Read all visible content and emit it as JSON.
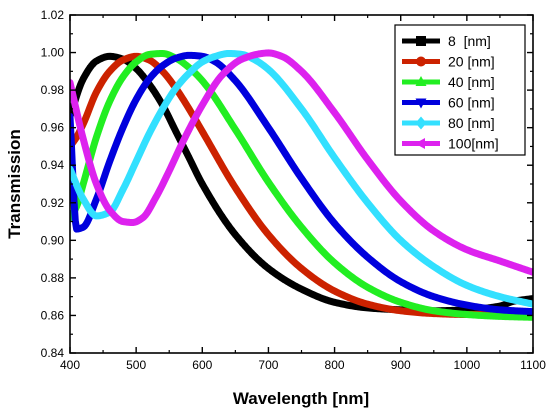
{
  "chart_data": {
    "type": "line",
    "title": "",
    "xlabel": "Wavelength [nm]",
    "ylabel": "Transmission",
    "xlim": [
      400,
      1100
    ],
    "ylim": [
      0.84,
      1.02
    ],
    "x_ticks": [
      400,
      500,
      600,
      700,
      800,
      900,
      1000,
      1100
    ],
    "x_tick_labels": [
      "400",
      "500",
      "600",
      "700",
      "800",
      "900",
      "1000",
      "1100"
    ],
    "y_ticks": [
      0.84,
      0.86,
      0.88,
      0.9,
      0.92,
      0.94,
      0.96,
      0.98,
      1.0,
      1.02
    ],
    "y_tick_labels": [
      "0.84",
      "0.86",
      "0.88",
      "0.90",
      "0.92",
      "0.94",
      "0.96",
      "0.98",
      "1.00",
      "1.02"
    ],
    "grid": false,
    "legend_position": "top-right",
    "series": [
      {
        "name": "8  [nm]",
        "color": "#000000",
        "marker": "square",
        "x": [
          400,
          420,
          440,
          460,
          480,
          500,
          520,
          540,
          560,
          580,
          600,
          650,
          700,
          750,
          800,
          850,
          900,
          950,
          1000,
          1050,
          1070,
          1100
        ],
        "y": [
          0.966,
          0.986,
          0.9955,
          0.998,
          0.9965,
          0.9915,
          0.983,
          0.972,
          0.958,
          0.944,
          0.93,
          0.903,
          0.885,
          0.874,
          0.867,
          0.864,
          0.863,
          0.8625,
          0.863,
          0.865,
          0.8675,
          0.869
        ]
      },
      {
        "name": "20 [nm]",
        "color": "#cc2200",
        "marker": "circle",
        "x": [
          400,
          410,
          420,
          440,
          460,
          480,
          500,
          520,
          540,
          560,
          580,
          600,
          650,
          700,
          750,
          800,
          850,
          900,
          950,
          1000,
          1050,
          1100
        ],
        "y": [
          0.95,
          0.955,
          0.962,
          0.979,
          0.99,
          0.996,
          0.998,
          0.996,
          0.99,
          0.981,
          0.97,
          0.958,
          0.928,
          0.903,
          0.885,
          0.873,
          0.866,
          0.8625,
          0.861,
          0.8605,
          0.861,
          0.862
        ]
      },
      {
        "name": "40 [nm]",
        "color": "#22ee22",
        "marker": "triangle-up",
        "x": [
          400,
          410,
          420,
          440,
          460,
          480,
          500,
          520,
          540,
          560,
          580,
          600,
          650,
          700,
          750,
          800,
          850,
          900,
          950,
          1000,
          1050,
          1100
        ],
        "y": [
          0.912,
          0.918,
          0.93,
          0.955,
          0.974,
          0.987,
          0.995,
          0.999,
          0.9995,
          0.997,
          0.992,
          0.985,
          0.959,
          0.931,
          0.907,
          0.888,
          0.875,
          0.867,
          0.8625,
          0.8605,
          0.8595,
          0.859
        ]
      },
      {
        "name": "60 [nm]",
        "color": "#0000dd",
        "marker": "triangle-down",
        "x": [
          400,
          410,
          420,
          440,
          460,
          480,
          500,
          520,
          540,
          560,
          580,
          600,
          620,
          650,
          700,
          750,
          800,
          850,
          900,
          950,
          1000,
          1050,
          1100
        ],
        "y": [
          0.966,
          0.906,
          0.907,
          0.922,
          0.942,
          0.96,
          0.975,
          0.986,
          0.993,
          0.997,
          0.9985,
          0.998,
          0.995,
          0.985,
          0.96,
          0.933,
          0.909,
          0.891,
          0.878,
          0.87,
          0.8655,
          0.863,
          0.862
        ]
      },
      {
        "name": "80 [nm]",
        "color": "#33e0ff",
        "marker": "diamond",
        "x": [
          400,
          420,
          440,
          460,
          480,
          500,
          520,
          540,
          560,
          580,
          600,
          620,
          640,
          660,
          680,
          700,
          750,
          800,
          850,
          900,
          950,
          1000,
          1050,
          1100
        ],
        "y": [
          0.938,
          0.922,
          0.913,
          0.915,
          0.927,
          0.942,
          0.957,
          0.97,
          0.981,
          0.989,
          0.995,
          0.998,
          0.9995,
          0.999,
          0.996,
          0.991,
          0.97,
          0.944,
          0.92,
          0.9,
          0.886,
          0.876,
          0.87,
          0.866
        ]
      },
      {
        "name": "100[nm]",
        "color": "#dd22ee",
        "marker": "triangle-left",
        "x": [
          400,
          420,
          440,
          460,
          480,
          495,
          510,
          530,
          550,
          570,
          600,
          630,
          660,
          690,
          700,
          720,
          750,
          800,
          850,
          900,
          950,
          1000,
          1050,
          1100
        ],
        "y": [
          0.984,
          0.954,
          0.93,
          0.916,
          0.91,
          0.9095,
          0.912,
          0.923,
          0.937,
          0.952,
          0.972,
          0.988,
          0.9965,
          0.9995,
          0.9998,
          0.998,
          0.99,
          0.968,
          0.943,
          0.921,
          0.905,
          0.895,
          0.889,
          0.883
        ]
      }
    ]
  }
}
